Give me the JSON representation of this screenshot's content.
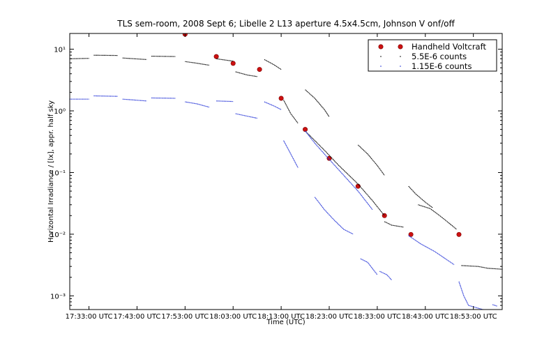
{
  "chart_data": {
    "type": "scatter",
    "title": "TLS sem-room, 2008 Sept 6; Libelle 2 L13 aperture 4.5x4.5cm, Johnson V onf/off",
    "xlabel": "Time (UTC)",
    "ylabel": "Horizontal Irradiance / [lx], appr. half sky",
    "yscale": "log",
    "xlim": [
      "17:29:00",
      "18:59:00"
    ],
    "ylim": [
      0.0006,
      18
    ],
    "x_ticks": [
      "17:33:00 UTC",
      "17:43:00 UTC",
      "17:53:00 UTC",
      "18:03:00 UTC",
      "18:13:00 UTC",
      "18:23:00 UTC",
      "18:33:00 UTC",
      "18:43:00 UTC",
      "18:53:00 UTC"
    ],
    "y_ticks": [
      {
        "value": 10,
        "label": "10¹"
      },
      {
        "value": 1,
        "label": "10⁰"
      },
      {
        "value": 0.1,
        "label": "10⁻¹"
      },
      {
        "value": 0.01,
        "label": "10⁻²"
      },
      {
        "value": 0.001,
        "label": "10⁻³"
      }
    ],
    "legend_position": "top-right",
    "series": [
      {
        "name": "Handheld Voltcraft",
        "color": "#cc1111",
        "marker": "circle",
        "points": [
          [
            "17:53:00",
            17.5
          ],
          [
            "17:59:30",
            7.6
          ],
          [
            "18:03:00",
            5.9
          ],
          [
            "18:08:30",
            4.7
          ],
          [
            "18:13:00",
            1.6
          ],
          [
            "18:18:00",
            0.5
          ],
          [
            "18:23:00",
            0.17
          ],
          [
            "18:29:00",
            0.06
          ],
          [
            "18:34:30",
            0.02
          ],
          [
            "18:40:00",
            0.0099
          ],
          [
            "18:50:00",
            0.0099
          ]
        ]
      },
      {
        "name": "5.5E-6 counts",
        "color": "#000000",
        "marker": "dots",
        "segments": [
          [
            [
              "17:29:00",
              7.0
            ],
            [
              "17:33:00",
              7.1
            ]
          ],
          [
            [
              "17:34:00",
              8.0
            ],
            [
              "17:39:00",
              7.9
            ]
          ],
          [
            [
              "17:40:00",
              7.2
            ],
            [
              "17:45:00",
              6.8
            ]
          ],
          [
            [
              "17:46:00",
              7.7
            ],
            [
              "17:51:00",
              7.6
            ]
          ],
          [
            [
              "17:53:00",
              6.3
            ],
            [
              "17:55:00",
              6.0
            ],
            [
              "17:58:00",
              5.5
            ]
          ],
          [
            [
              "17:59:30",
              7.0
            ],
            [
              "18:03:00",
              6.4
            ]
          ],
          [
            [
              "18:03:30",
              4.3
            ],
            [
              "18:06:00",
              3.8
            ],
            [
              "18:08:00",
              3.6
            ]
          ],
          [
            [
              "18:09:30",
              6.8
            ],
            [
              "18:11:30",
              5.6
            ],
            [
              "18:13:00",
              4.7
            ]
          ],
          [
            [
              "18:13:30",
              1.5
            ],
            [
              "18:15:00",
              0.9
            ],
            [
              "18:16:30",
              0.63
            ]
          ],
          [
            [
              "18:18:00",
              2.2
            ],
            [
              "18:20:00",
              1.6
            ],
            [
              "18:22:00",
              1.05
            ],
            [
              "18:23:00",
              0.8
            ]
          ],
          [
            [
              "18:18:00",
              0.47
            ],
            [
              "18:20:00",
              0.33
            ],
            [
              "18:22:00",
              0.23
            ],
            [
              "18:25:00",
              0.13
            ],
            [
              "18:29:00",
              0.065
            ],
            [
              "18:32:00",
              0.035
            ],
            [
              "18:34:30",
              0.02
            ]
          ],
          [
            [
              "18:29:00",
              0.28
            ],
            [
              "18:31:00",
              0.2
            ],
            [
              "18:33:00",
              0.13
            ],
            [
              "18:34:30",
              0.09
            ]
          ],
          [
            [
              "18:34:30",
              0.016
            ],
            [
              "18:36:00",
              0.014
            ],
            [
              "18:38:30",
              0.013
            ]
          ],
          [
            [
              "18:39:30",
              0.06
            ],
            [
              "18:41:00",
              0.045
            ],
            [
              "18:43:00",
              0.033
            ],
            [
              "18:44:30",
              0.027
            ]
          ],
          [
            [
              "18:41:30",
              0.03
            ],
            [
              "18:44:00",
              0.026
            ],
            [
              "18:46:00",
              0.02
            ],
            [
              "18:48:00",
              0.015
            ],
            [
              "18:49:30",
              0.012
            ]
          ],
          [
            [
              "18:50:30",
              0.0031
            ],
            [
              "18:54:00",
              0.003
            ],
            [
              "18:56:00",
              0.0028
            ],
            [
              "18:59:00",
              0.0027
            ]
          ]
        ]
      },
      {
        "name": "1.15E-6 counts",
        "color": "#1f2fd6",
        "marker": "dots",
        "segments": [
          [
            [
              "17:29:00",
              1.55
            ],
            [
              "17:33:00",
              1.55
            ]
          ],
          [
            [
              "17:34:00",
              1.75
            ],
            [
              "17:39:00",
              1.72
            ]
          ],
          [
            [
              "17:40:00",
              1.55
            ],
            [
              "17:45:00",
              1.45
            ]
          ],
          [
            [
              "17:46:00",
              1.62
            ],
            [
              "17:51:00",
              1.6
            ]
          ],
          [
            [
              "17:53:00",
              1.4
            ],
            [
              "17:55:30",
              1.3
            ],
            [
              "17:58:00",
              1.15
            ]
          ],
          [
            [
              "17:59:30",
              1.45
            ],
            [
              "18:03:00",
              1.42
            ]
          ],
          [
            [
              "18:03:30",
              0.9
            ],
            [
              "18:06:00",
              0.82
            ],
            [
              "18:08:00",
              0.76
            ]
          ],
          [
            [
              "18:09:30",
              1.4
            ],
            [
              "18:11:30",
              1.2
            ],
            [
              "18:13:00",
              1.05
            ]
          ],
          [
            [
              "18:13:30",
              0.33
            ],
            [
              "18:15:00",
              0.2
            ],
            [
              "18:16:30",
              0.12
            ]
          ],
          [
            [
              "18:18:00",
              0.47
            ],
            [
              "18:20:00",
              0.3
            ],
            [
              "18:22:00",
              0.2
            ],
            [
              "18:25:00",
              0.11
            ],
            [
              "18:29:00",
              0.05
            ],
            [
              "18:32:00",
              0.025
            ]
          ],
          [
            [
              "18:20:00",
              0.04
            ],
            [
              "18:22:00",
              0.025
            ],
            [
              "18:24:00",
              0.017
            ],
            [
              "18:26:00",
              0.012
            ],
            [
              "18:28:00",
              0.01
            ]
          ],
          [
            [
              "18:29:30",
              0.004
            ],
            [
              "18:31:00",
              0.0035
            ],
            [
              "18:33:00",
              0.0022
            ]
          ],
          [
            [
              "18:33:30",
              0.0025
            ],
            [
              "18:35:00",
              0.0022
            ],
            [
              "18:36:00",
              0.0018
            ]
          ],
          [
            [
              "18:39:30",
              0.0095
            ],
            [
              "18:42:00",
              0.007
            ],
            [
              "18:45:00",
              0.0052
            ],
            [
              "18:49:00",
              0.0032
            ]
          ],
          [
            [
              "18:50:00",
              0.0017
            ],
            [
              "18:51:00",
              0.001
            ],
            [
              "18:52:00",
              0.0007
            ],
            [
              "18:55:00",
              0.0006
            ]
          ],
          [
            [
              "18:57:00",
              0.00072
            ],
            [
              "18:58:00",
              0.00068
            ]
          ]
        ]
      }
    ]
  }
}
